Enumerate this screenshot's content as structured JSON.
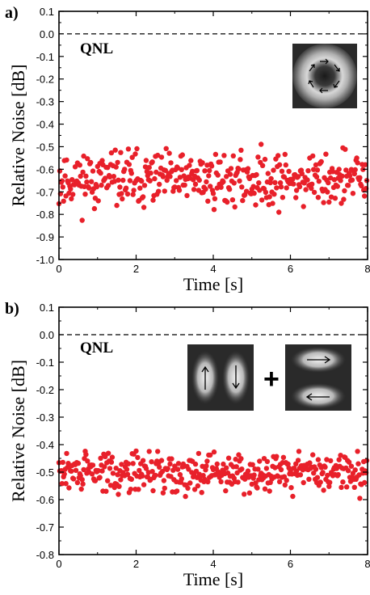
{
  "chart_data": [
    {
      "type": "scatter",
      "panel_label": "a)",
      "xlabel": "Time [s]",
      "ylabel": "Relative Noise [dB]",
      "xlim": [
        0,
        8
      ],
      "ylim": [
        -1.0,
        0.1
      ],
      "x_ticks": [
        "0",
        "2",
        "4",
        "6",
        "8"
      ],
      "y_ticks": [
        "0.1",
        "0.0",
        "-0.1",
        "-0.2",
        "-0.3",
        "-0.4",
        "-0.5",
        "-0.6",
        "-0.7",
        "-0.8",
        "-0.9",
        "-1.0"
      ],
      "reference_line": {
        "label": "QNL",
        "y": 0.0,
        "style": "dashed"
      },
      "inset": "ring-mode-circulating-arrows",
      "marker_color": "#e8202a",
      "points": {
        "x_start": 0.0,
        "x_step": 0.02,
        "count": 400,
        "y_mean": -0.645,
        "y_spread": 0.085,
        "y_range_approx": [
          -0.92,
          -0.38
        ],
        "seed": 11
      }
    },
    {
      "type": "scatter",
      "panel_label": "b)",
      "xlabel": "Time [s]",
      "ylabel": "Relative Noise [dB]",
      "xlim": [
        0,
        8
      ],
      "ylim": [
        -0.8,
        0.1
      ],
      "x_ticks": [
        "0",
        "2",
        "4",
        "6",
        "8"
      ],
      "y_ticks": [
        "0.1",
        "0.0",
        "-0.1",
        "-0.2",
        "-0.3",
        "-0.4",
        "-0.5",
        "-0.6",
        "-0.7",
        "-0.8"
      ],
      "reference_line": {
        "label": "QNL",
        "y": 0.0,
        "style": "dashed"
      },
      "inset": "two-lobe-modes-superposition",
      "inset_operator": "+",
      "marker_color": "#e8202a",
      "points": {
        "x_start": 0.0,
        "x_step": 0.02,
        "count": 400,
        "y_mean": -0.5,
        "y_spread": 0.05,
        "y_range_approx": [
          -0.68,
          -0.37
        ],
        "seed": 29
      }
    }
  ]
}
